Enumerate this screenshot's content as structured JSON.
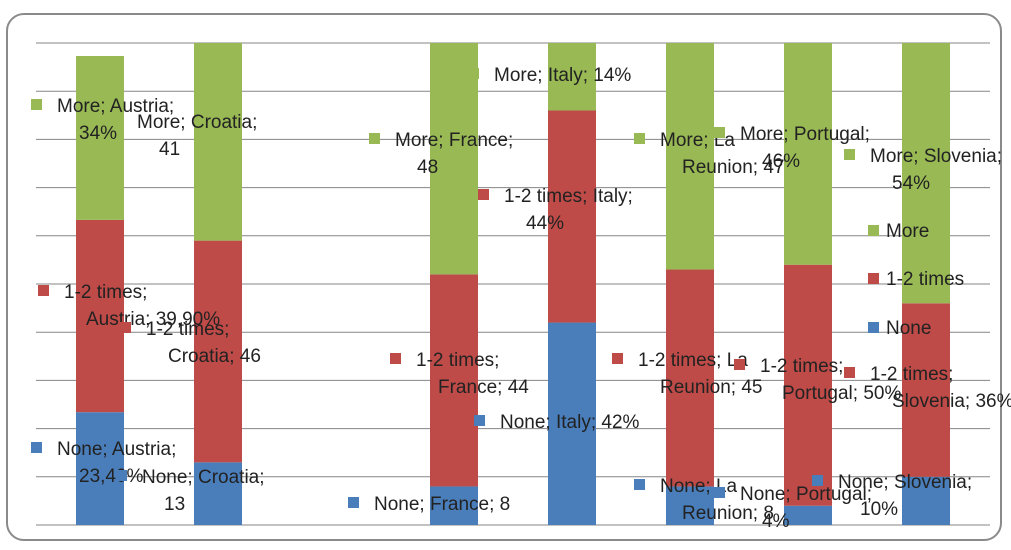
{
  "chart_data": {
    "type": "bar",
    "stacked": true,
    "categories": [
      "Austria",
      "Croatia",
      "",
      "France",
      "Italy",
      "La Reunion",
      "Portugal",
      "Slovenia"
    ],
    "ylim": [
      0,
      100
    ],
    "grid": true,
    "legend_position": "right",
    "legend": [
      "More",
      "1-2 times",
      "None"
    ],
    "colors": {
      "None": "#4a7ebb",
      "1-2 times": "#be4b48",
      "More": "#98b954"
    },
    "series": [
      {
        "name": "None",
        "values": [
          23.4,
          13,
          0,
          8,
          42,
          8,
          4,
          10
        ]
      },
      {
        "name": "1-2 times",
        "values": [
          39.9,
          46,
          0,
          44,
          44,
          45,
          50,
          36
        ]
      },
      {
        "name": "More",
        "values": [
          34,
          41,
          0,
          48,
          14,
          47,
          46,
          54
        ]
      }
    ],
    "data_labels": [
      {
        "series": 0,
        "cat": 0,
        "lines": [
          "None; Austria;",
          "23,40%"
        ]
      },
      {
        "series": 1,
        "cat": 0,
        "lines": [
          "1-2 times;",
          "Austria; 39,90%"
        ]
      },
      {
        "series": 2,
        "cat": 0,
        "lines": [
          "More; Austria;",
          "34%"
        ]
      },
      {
        "series": 0,
        "cat": 1,
        "lines": [
          "None; Croatia;",
          "13"
        ]
      },
      {
        "series": 1,
        "cat": 1,
        "lines": [
          "1-2 times;",
          "Croatia; 46"
        ]
      },
      {
        "series": 2,
        "cat": 1,
        "lines": [
          "More; Croatia;",
          "41"
        ]
      },
      {
        "series": 0,
        "cat": 3,
        "lines": [
          "None; France; 8"
        ]
      },
      {
        "series": 1,
        "cat": 3,
        "lines": [
          "1-2 times;",
          "France; 44"
        ]
      },
      {
        "series": 2,
        "cat": 3,
        "lines": [
          "More; France;",
          "48"
        ]
      },
      {
        "series": 0,
        "cat": 4,
        "lines": [
          "None; Italy; 42%"
        ]
      },
      {
        "series": 1,
        "cat": 4,
        "lines": [
          "1-2 times; Italy;",
          "44%"
        ]
      },
      {
        "series": 2,
        "cat": 4,
        "lines": [
          "More; Italy; 14%"
        ]
      },
      {
        "series": 0,
        "cat": 5,
        "lines": [
          "None; La",
          "Reunion; 8"
        ]
      },
      {
        "series": 1,
        "cat": 5,
        "lines": [
          "1-2 times; La",
          "Reunion; 45"
        ]
      },
      {
        "series": 2,
        "cat": 5,
        "lines": [
          "More; La",
          "Reunion; 47"
        ]
      },
      {
        "series": 0,
        "cat": 6,
        "lines": [
          "None; Portugal;",
          "4%"
        ]
      },
      {
        "series": 1,
        "cat": 6,
        "lines": [
          "1-2 times;",
          "Portugal; 50%"
        ]
      },
      {
        "series": 2,
        "cat": 6,
        "lines": [
          "More; Portugal;",
          "46%"
        ]
      },
      {
        "series": 0,
        "cat": 7,
        "lines": [
          "None; Slovenia;",
          "10%"
        ]
      },
      {
        "series": 1,
        "cat": 7,
        "lines": [
          "1-2 times;",
          "Slovenia; 36%"
        ]
      },
      {
        "series": 2,
        "cat": 7,
        "lines": [
          "More; Slovenia;",
          "54%"
        ]
      }
    ]
  }
}
